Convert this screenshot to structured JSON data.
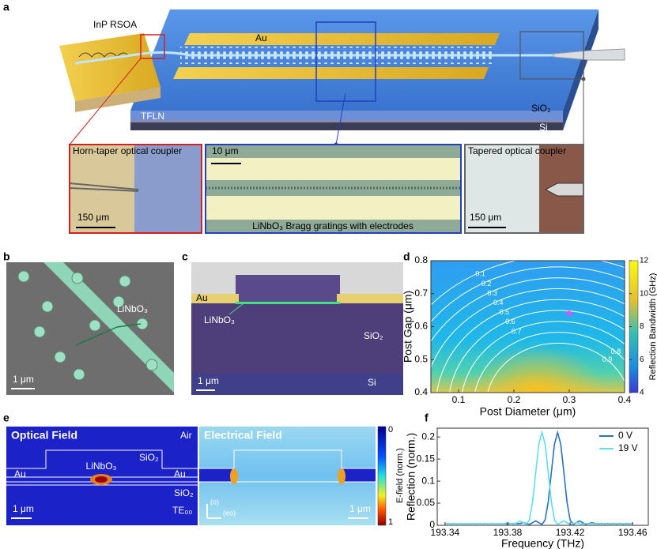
{
  "figure": {
    "panel_labels": [
      "a",
      "b",
      "c",
      "d",
      "e",
      "f"
    ],
    "a": {
      "labels": {
        "rsoa": "InP RSOA",
        "au": "Au",
        "sio2": "SiO₂",
        "tfln": "TFLN",
        "si": "Si"
      },
      "insets": [
        {
          "title": "Horn-taper optical coupler",
          "scale": "150 μm"
        },
        {
          "title": "LiNbO₃ Bragg gratings with electrodes",
          "scale": "10 μm"
        },
        {
          "title": "Tapered optical coupler",
          "scale": "150 μm"
        }
      ]
    },
    "b": {
      "labels": [
        "LiNbO₃"
      ],
      "scale": "1 μm"
    },
    "c": {
      "labels": [
        "Au",
        "LiNbO₃",
        "SiO₂",
        "Si"
      ],
      "scale": "1 μm"
    },
    "e": {
      "optical": {
        "title": "Optical Field",
        "labels": [
          "Air",
          "SiO₂",
          "Au",
          "LiNbO₃",
          "Au",
          "SiO₂",
          "TE₀₀"
        ],
        "scale": "1 μm"
      },
      "electrical": {
        "title": "Electrical Field",
        "scale": "1 μm",
        "axes": [
          "(o)",
          "(eo)"
        ]
      },
      "colorbar": {
        "label": "E-field (norm.)",
        "ticks": [
          0,
          1
        ]
      }
    }
  },
  "chart_data": [
    {
      "type": "contour",
      "xlabel": "Post Diameter (μm)",
      "ylabel": "Post Gap (μm)",
      "xlim": [
        0.05,
        0.4
      ],
      "ylim": [
        0.4,
        0.8
      ],
      "xticks": [
        0.1,
        0.2,
        0.3,
        0.4
      ],
      "yticks": [
        0.4,
        0.5,
        0.6,
        0.7,
        0.8
      ],
      "contour_levels": [
        0.1,
        0.2,
        0.3,
        0.4,
        0.5,
        0.6,
        0.7,
        0.8,
        0.9
      ],
      "colorbar": {
        "label": "Reflection Bandwidth (GHz)",
        "lim": [
          4,
          12
        ],
        "ticks": [
          4,
          6,
          8,
          10,
          12
        ]
      },
      "marker": {
        "x": 0.3,
        "y": 0.64,
        "color": "#ff40ff"
      }
    },
    {
      "type": "line",
      "xlabel": "Frequency (THz)",
      "ylabel": "Reflection (norm.)",
      "x": [
        193.34,
        193.342,
        193.344,
        193.346,
        193.348,
        193.35,
        193.352,
        193.354,
        193.356,
        193.358,
        193.36,
        193.362,
        193.364,
        193.366,
        193.368,
        193.37,
        193.372,
        193.374,
        193.376,
        193.378,
        193.38,
        193.382,
        193.384,
        193.386,
        193.388,
        193.39,
        193.392,
        193.394,
        193.396,
        193.398,
        193.4,
        193.402,
        193.404,
        193.406,
        193.408,
        193.41,
        193.412,
        193.414,
        193.416,
        193.418,
        193.42,
        193.422,
        193.424,
        193.426,
        193.428,
        193.43,
        193.432,
        193.434,
        193.436,
        193.438,
        193.44,
        193.442,
        193.444,
        193.446,
        193.448,
        193.45,
        193.452,
        193.454,
        193.456,
        193.458,
        193.46
      ],
      "series": [
        {
          "name": "0 V",
          "color": "#2a6fc9",
          "values": [
            0.003,
            0.004,
            0.003,
            0.004,
            0.003,
            0.004,
            0.003,
            0.004,
            0.003,
            0.004,
            0.003,
            0.004,
            0.003,
            0.004,
            0.003,
            0.004,
            0.003,
            0.004,
            0.003,
            0.004,
            0.003,
            0.004,
            0.003,
            0.004,
            0.004,
            0.006,
            0.004,
            0.002,
            0.006,
            0.01,
            0.006,
            0.002,
            0.012,
            0.053,
            0.12,
            0.184,
            0.21,
            0.184,
            0.12,
            0.053,
            0.012,
            0.002,
            0.006,
            0.01,
            0.006,
            0.002,
            0.004,
            0.006,
            0.004,
            0.003,
            0.004,
            0.003,
            0.004,
            0.003,
            0.004,
            0.003,
            0.004,
            0.003,
            0.004,
            0.003,
            0.004
          ]
        },
        {
          "name": "19 V",
          "color": "#5ce0f0",
          "values": [
            0.003,
            0.004,
            0.003,
            0.004,
            0.003,
            0.004,
            0.003,
            0.004,
            0.003,
            0.004,
            0.003,
            0.004,
            0.003,
            0.004,
            0.003,
            0.004,
            0.003,
            0.004,
            0.003,
            0.004,
            0.006,
            0.004,
            0.002,
            0.006,
            0.01,
            0.006,
            0.002,
            0.012,
            0.053,
            0.12,
            0.184,
            0.21,
            0.184,
            0.12,
            0.053,
            0.012,
            0.002,
            0.006,
            0.01,
            0.006,
            0.002,
            0.004,
            0.006,
            0.004,
            0.003,
            0.004,
            0.003,
            0.004,
            0.003,
            0.004,
            0.003,
            0.004,
            0.003,
            0.004,
            0.003,
            0.004,
            0.003,
            0.004,
            0.003,
            0.004,
            0.003
          ]
        }
      ],
      "xlim": [
        193.335,
        193.47
      ],
      "ylim": [
        0,
        0.22
      ],
      "xticks": [
        193.34,
        193.38,
        193.42,
        193.46
      ],
      "yticks": [
        0,
        0.05,
        0.1,
        0.15,
        0.2
      ],
      "legend": "upper right"
    }
  ]
}
